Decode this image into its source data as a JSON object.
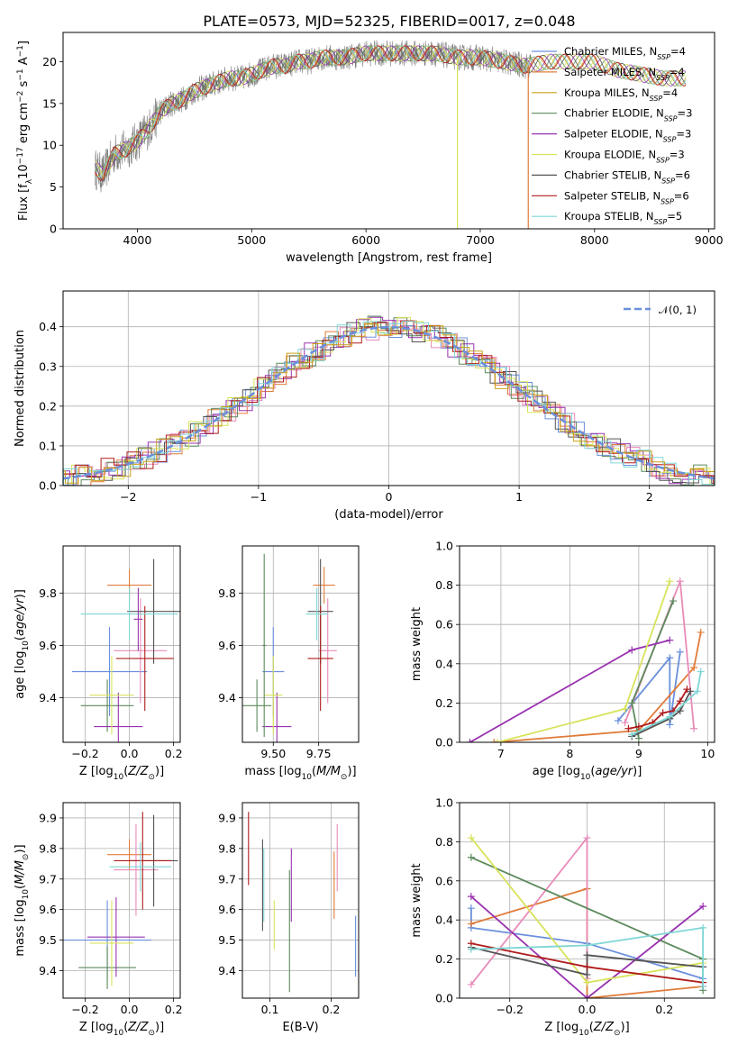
{
  "figure_title": "PLATE=0573, MJD=52325, FIBERID=0017, z=0.048",
  "colors": {
    "chabrier_miles": "#6a8fdc",
    "salpeter_miles": "#e07b39",
    "kroupa_miles": "#c9a21a",
    "chabrier_elodie": "#5c8a5c",
    "salpeter_elodie": "#9932b0",
    "kroupa_elodie": "#d8e35a",
    "chabrier_stelib": "#555555",
    "salpeter_stelib": "#b01c1c",
    "kroupa_stelib": "#7fd6d6",
    "pink": "#e88bb8",
    "data_gray": "#7f7f7f"
  },
  "chart_data": [
    {
      "id": "spectrum",
      "type": "line",
      "title": "PLATE=0573, MJD=52325, FIBERID=0017, z=0.048",
      "xlabel": "wavelength [Angstrom, rest frame]",
      "ylabel": "Flux [fλ10⁻¹⁷ erg cm⁻² s⁻¹ A⁻¹]",
      "xlim": [
        3350,
        9050
      ],
      "ylim": [
        0,
        23.5
      ],
      "xticks": [
        4000,
        5000,
        6000,
        7000,
        8000,
        9000
      ],
      "yticks": [
        0,
        5,
        10,
        15,
        20
      ],
      "grid": false,
      "legend_position": "right",
      "legend": [
        {
          "label": "Chabrier MILES, N",
          "sub": "SSP",
          "tail": "=4",
          "color": "chabrier_miles"
        },
        {
          "label": "Salpeter MILES, N",
          "sub": "SSP",
          "tail": "=4",
          "color": "salpeter_miles"
        },
        {
          "label": "Kroupa MILES, N",
          "sub": "SSP",
          "tail": "=4",
          "color": "kroupa_miles"
        },
        {
          "label": "Chabrier ELODIE, N",
          "sub": "SSP",
          "tail": "=3",
          "color": "chabrier_elodie"
        },
        {
          "label": "Salpeter ELODIE, N",
          "sub": "SSP",
          "tail": "=3",
          "color": "salpeter_elodie"
        },
        {
          "label": "Kroupa ELODIE, N",
          "sub": "SSP",
          "tail": "=3",
          "color": "kroupa_elodie"
        },
        {
          "label": "Chabrier STELIB, N",
          "sub": "SSP",
          "tail": "=6",
          "color": "chabrier_stelib"
        },
        {
          "label": "Salpeter STELIB, N",
          "sub": "SSP",
          "tail": "=6",
          "color": "salpeter_stelib"
        },
        {
          "label": "Kroupa STELIB, N",
          "sub": "SSP",
          "tail": "=5",
          "color": "kroupa_stelib"
        }
      ],
      "continuum_x": [
        3600,
        3700,
        3800,
        3900,
        4000,
        4100,
        4200,
        4300,
        4400,
        4500,
        4600,
        4700,
        4800,
        4900,
        5000,
        5100,
        5200,
        5300,
        5400,
        5500,
        5600,
        5800,
        6000,
        6200,
        6400,
        6600,
        6800,
        7000,
        7200,
        7400,
        7600,
        7800,
        8000,
        8200,
        8400,
        8600,
        8800
      ],
      "continuum_y": [
        7.5,
        6.5,
        9,
        9.5,
        10.5,
        12,
        14,
        15,
        15.5,
        16.5,
        17,
        17.5,
        18,
        18,
        18.5,
        19,
        19.5,
        19.5,
        20,
        20,
        20.5,
        20.5,
        21,
        21,
        21,
        21,
        20.5,
        20.5,
        20,
        19.5,
        20,
        20,
        20,
        19,
        18.5,
        18,
        18
      ],
      "dips": [
        {
          "x": 6800,
          "color": "kroupa_elodie"
        },
        {
          "x": 7420,
          "color": "salpeter_miles"
        }
      ]
    },
    {
      "id": "residuals",
      "type": "histogram",
      "xlabel": "(data-model)/error",
      "ylabel": "Normed distribution",
      "xlim": [
        -2.5,
        2.5
      ],
      "ylim": [
        0,
        0.49
      ],
      "xticks": [
        -2,
        -1,
        0,
        1,
        2
      ],
      "xtick_labels": [
        "−2",
        "−1",
        "0",
        "1",
        "2"
      ],
      "yticks": [
        0.0,
        0.1,
        0.2,
        0.3,
        0.4
      ],
      "ytick_labels": [
        "0.0",
        "0.1",
        "0.2",
        "0.3",
        "0.4"
      ],
      "grid": true,
      "legend_position": "top-right",
      "legend_label": "𝒩(0, 1)",
      "bin_width": 0.1
    },
    {
      "id": "age_vs_Z",
      "type": "errorbar",
      "xlabel": "Z [log₁₀(Z/Z⊙)]",
      "ylabel": "age  [log₁₀(age/yr)]",
      "xlim": [
        -0.3,
        0.23
      ],
      "ylim": [
        9.23,
        9.98
      ],
      "xticks": [
        -0.2,
        0.0,
        0.2
      ],
      "xtick_labels": [
        "−0.2",
        "0.0",
        "0.2"
      ],
      "yticks": [
        9.4,
        9.6,
        9.8
      ],
      "ytick_labels": [
        "9.4",
        "9.6",
        "9.8"
      ],
      "grid": true,
      "points": [
        {
          "x": -0.09,
          "y": 9.5,
          "xerr": 0.17,
          "yerr": 0.17,
          "color": "chabrier_miles"
        },
        {
          "x": 0.0,
          "y": 9.83,
          "xerr": 0.1,
          "yerr": 0.06,
          "color": "salpeter_miles"
        },
        {
          "x": 0.05,
          "y": 9.58,
          "xerr": 0.12,
          "yerr": 0.2,
          "color": "pink"
        },
        {
          "x": -0.1,
          "y": 9.37,
          "xerr": 0.12,
          "yerr": 0.1,
          "color": "chabrier_elodie"
        },
        {
          "x": -0.05,
          "y": 9.29,
          "xerr": 0.11,
          "yerr": 0.13,
          "color": "salpeter_elodie"
        },
        {
          "x": -0.08,
          "y": 9.41,
          "xerr": 0.1,
          "yerr": 0.15,
          "color": "kroupa_elodie"
        },
        {
          "x": 0.11,
          "y": 9.73,
          "xerr": 0.12,
          "yerr": 0.2,
          "color": "chabrier_stelib"
        },
        {
          "x": 0.07,
          "y": 9.55,
          "xerr": 0.13,
          "yerr": 0.2,
          "color": "salpeter_stelib"
        },
        {
          "x": 0.0,
          "y": 9.72,
          "xerr": 0.22,
          "yerr": 0.1,
          "color": "kroupa_stelib"
        },
        {
          "x": 0.04,
          "y": 9.7,
          "xerr": 0.02,
          "yerr": 0.12,
          "color": "salpeter_elodie"
        }
      ]
    },
    {
      "id": "age_vs_mass",
      "type": "errorbar",
      "xlabel": "mass [log₁₀(M/M⊙)]",
      "ylabel": "",
      "xlim": [
        9.33,
        9.97
      ],
      "ylim": [
        9.23,
        9.98
      ],
      "xticks": [
        9.5,
        9.75
      ],
      "xtick_labels": [
        "9.50",
        "9.75"
      ],
      "yticks": [
        9.4,
        9.6,
        9.8
      ],
      "ytick_labels": [
        "9.4",
        "9.6",
        "9.8"
      ],
      "grid": true,
      "points": [
        {
          "x": 9.5,
          "y": 9.5,
          "xerr": 0.06,
          "yerr": 0.17,
          "color": "chabrier_miles"
        },
        {
          "x": 9.78,
          "y": 9.83,
          "xerr": 0.06,
          "yerr": 0.07,
          "color": "salpeter_miles"
        },
        {
          "x": 9.8,
          "y": 9.58,
          "xerr": 0.05,
          "yerr": 0.2,
          "color": "pink"
        },
        {
          "x": 9.41,
          "y": 9.37,
          "xerr": 0.08,
          "yerr": 0.1,
          "color": "chabrier_elodie"
        },
        {
          "x": 9.52,
          "y": 9.29,
          "xerr": 0.08,
          "yerr": 0.13,
          "color": "salpeter_elodie"
        },
        {
          "x": 9.5,
          "y": 9.41,
          "xerr": 0.05,
          "yerr": 0.15,
          "color": "kroupa_elodie"
        },
        {
          "x": 9.76,
          "y": 9.73,
          "xerr": 0.07,
          "yerr": 0.2,
          "color": "chabrier_stelib"
        },
        {
          "x": 9.76,
          "y": 9.55,
          "xerr": 0.07,
          "yerr": 0.2,
          "color": "salpeter_stelib"
        },
        {
          "x": 9.74,
          "y": 9.72,
          "xerr": 0.06,
          "yerr": 0.1,
          "color": "kroupa_stelib"
        },
        {
          "x": 9.45,
          "y": 9.6,
          "xerr": 0.01,
          "yerr": 0.35,
          "color": "chabrier_elodie"
        }
      ]
    },
    {
      "id": "weight_vs_age",
      "type": "line",
      "xlabel": "age  [log₁₀(age/yr)]",
      "ylabel": "mass weight",
      "xlim": [
        6.4,
        10.1
      ],
      "ylim": [
        0,
        1.0
      ],
      "xticks": [
        7,
        8,
        9,
        10
      ],
      "yticks": [
        0.0,
        0.2,
        0.4,
        0.6,
        0.8,
        1.0
      ],
      "ytick_labels": [
        "0.0",
        "0.2",
        "0.4",
        "0.6",
        "0.8",
        "1.0"
      ],
      "grid": true,
      "series": [
        {
          "color": "chabrier_miles",
          "x": [
            8.7,
            9.45,
            9.45,
            9.6
          ],
          "y": [
            0.11,
            0.43,
            0.09,
            0.46
          ]
        },
        {
          "color": "salpeter_miles",
          "x": [
            6.9,
            9.0,
            9.8,
            9.9
          ],
          "y": [
            0.0,
            0.06,
            0.38,
            0.56
          ]
        },
        {
          "color": "pink",
          "x": [
            8.8,
            9.6,
            9.8
          ],
          "y": [
            0.1,
            0.82,
            0.07
          ]
        },
        {
          "color": "chabrier_elodie",
          "x": [
            9.0,
            8.9,
            9.5
          ],
          "y": [
            0.02,
            0.2,
            0.72
          ]
        },
        {
          "color": "salpeter_elodie",
          "x": [
            6.55,
            8.9,
            9.45
          ],
          "y": [
            0.0,
            0.47,
            0.52
          ]
        },
        {
          "color": "kroupa_elodie",
          "x": [
            6.95,
            8.8,
            9.45
          ],
          "y": [
            0.0,
            0.17,
            0.82
          ]
        },
        {
          "color": "chabrier_stelib",
          "x": [
            8.9,
            9.45,
            9.6,
            9.75
          ],
          "y": [
            0.03,
            0.12,
            0.16,
            0.26
          ]
        },
        {
          "color": "salpeter_stelib",
          "x": [
            8.85,
            9.0,
            9.2,
            9.35,
            9.5,
            9.6,
            9.7
          ],
          "y": [
            0.07,
            0.08,
            0.1,
            0.15,
            0.16,
            0.21,
            0.27
          ]
        },
        {
          "color": "kroupa_stelib",
          "x": [
            8.9,
            9.45,
            9.85,
            9.9
          ],
          "y": [
            0.04,
            0.13,
            0.26,
            0.36
          ]
        }
      ]
    },
    {
      "id": "mass_vs_Z",
      "type": "errorbar",
      "xlabel": "Z [log₁₀(Z/Z⊙)]",
      "ylabel": "mass [log₁₀(M/M⊙)]",
      "xlim": [
        -0.3,
        0.23
      ],
      "ylim": [
        9.31,
        9.95
      ],
      "xticks": [
        -0.2,
        0.0,
        0.2
      ],
      "xtick_labels": [
        "−0.2",
        "0.0",
        "0.2"
      ],
      "yticks": [
        9.4,
        9.5,
        9.6,
        9.7,
        9.8,
        9.9
      ],
      "ytick_labels": [
        "9.4",
        "9.5",
        "9.6",
        "9.7",
        "9.8",
        "9.9"
      ],
      "grid": true,
      "points": [
        {
          "x": -0.1,
          "y": 9.5,
          "xerr": 0.2,
          "yerr": 0.13,
          "color": "chabrier_miles"
        },
        {
          "x": 0.0,
          "y": 9.78,
          "xerr": 0.1,
          "yerr": 0.05,
          "color": "salpeter_miles"
        },
        {
          "x": 0.03,
          "y": 9.73,
          "xerr": 0.1,
          "yerr": 0.15,
          "color": "pink"
        },
        {
          "x": -0.1,
          "y": 9.41,
          "xerr": 0.13,
          "yerr": 0.07,
          "color": "chabrier_elodie"
        },
        {
          "x": -0.06,
          "y": 9.51,
          "xerr": 0.13,
          "yerr": 0.13,
          "color": "salpeter_elodie"
        },
        {
          "x": -0.08,
          "y": 9.49,
          "xerr": 0.1,
          "yerr": 0.14,
          "color": "kroupa_elodie"
        },
        {
          "x": 0.11,
          "y": 9.76,
          "xerr": 0.11,
          "yerr": 0.15,
          "color": "chabrier_stelib"
        },
        {
          "x": 0.06,
          "y": 9.76,
          "xerr": 0.13,
          "yerr": 0.16,
          "color": "salpeter_stelib"
        },
        {
          "x": 0.05,
          "y": 9.74,
          "xerr": 0.14,
          "yerr": 0.08,
          "color": "kroupa_stelib"
        }
      ]
    },
    {
      "id": "mass_vs_ebv",
      "type": "errorbar",
      "xlabel": "E(B-V)",
      "ylabel": "",
      "xlim": [
        0.055,
        0.245
      ],
      "ylim": [
        9.31,
        9.95
      ],
      "xticks": [
        0.1,
        0.2
      ],
      "xtick_labels": [
        "0.1",
        "0.2"
      ],
      "yticks": [
        9.4,
        9.5,
        9.6,
        9.7,
        9.8,
        9.9
      ],
      "ytick_labels": [
        "9.4",
        "9.5",
        "9.6",
        "9.7",
        "9.8",
        "9.9"
      ],
      "grid": true,
      "points": [
        {
          "x": 0.065,
          "y": 9.8,
          "xerr": 0,
          "yerr": 0.12,
          "color": "salpeter_stelib"
        },
        {
          "x": 0.088,
          "y": 9.68,
          "xerr": 0,
          "yerr": 0.15,
          "color": "chabrier_stelib"
        },
        {
          "x": 0.09,
          "y": 9.68,
          "xerr": 0,
          "yerr": 0.12,
          "color": "kroupa_stelib"
        },
        {
          "x": 0.107,
          "y": 9.55,
          "xerr": 0,
          "yerr": 0.08,
          "color": "kroupa_elodie"
        },
        {
          "x": 0.132,
          "y": 9.53,
          "xerr": 0,
          "yerr": 0.2,
          "color": "chabrier_elodie"
        },
        {
          "x": 0.135,
          "y": 9.68,
          "xerr": 0,
          "yerr": 0.12,
          "color": "salpeter_elodie"
        },
        {
          "x": 0.205,
          "y": 9.68,
          "xerr": 0,
          "yerr": 0.11,
          "color": "salpeter_miles"
        },
        {
          "x": 0.21,
          "y": 9.77,
          "xerr": 0,
          "yerr": 0.11,
          "color": "pink"
        },
        {
          "x": 0.24,
          "y": 9.48,
          "xerr": 0,
          "yerr": 0.1,
          "color": "chabrier_miles"
        }
      ]
    },
    {
      "id": "weight_vs_Z",
      "type": "line",
      "xlabel": "Z [log₁₀(Z/Z⊙)]",
      "ylabel": "mass weight",
      "xlim": [
        -0.33,
        0.33
      ],
      "ylim": [
        0,
        1.0
      ],
      "xticks": [
        -0.2,
        0.0,
        0.2
      ],
      "xtick_labels": [
        "−0.2",
        "0.0",
        "0.2"
      ],
      "yticks": [
        0.0,
        0.2,
        0.4,
        0.6,
        0.8,
        1.0
      ],
      "ytick_labels": [
        "0.0",
        "0.2",
        "0.4",
        "0.6",
        "0.8",
        "1.0"
      ],
      "grid": true,
      "series": [
        {
          "color": "chabrier_miles",
          "x": [
            -0.3,
            -0.3,
            0.0,
            0.3
          ],
          "y": [
            0.46,
            0.36,
            0.28,
            0.1
          ]
        },
        {
          "color": "salpeter_miles",
          "x": [
            -0.3,
            0.0,
            0.0,
            0.3
          ],
          "y": [
            0.38,
            0.56,
            0.0,
            0.06
          ]
        },
        {
          "color": "pink",
          "x": [
            -0.3,
            0.0,
            0.0
          ],
          "y": [
            0.07,
            0.82,
            0.1
          ]
        },
        {
          "color": "chabrier_elodie",
          "x": [
            -0.3,
            0.3,
            0.3
          ],
          "y": [
            0.72,
            0.2,
            0.04
          ]
        },
        {
          "color": "salpeter_elodie",
          "x": [
            -0.3,
            0.0,
            0.3
          ],
          "y": [
            0.52,
            0.0,
            0.47
          ]
        },
        {
          "color": "kroupa_elodie",
          "x": [
            -0.3,
            0.0,
            0.3
          ],
          "y": [
            0.82,
            0.08,
            0.18
          ]
        },
        {
          "color": "chabrier_stelib",
          "x": [
            -0.3,
            0.0,
            0.0,
            0.3
          ],
          "y": [
            0.26,
            0.12,
            0.22,
            0.16
          ]
        },
        {
          "color": "salpeter_stelib",
          "x": [
            -0.3,
            0.0,
            0.3
          ],
          "y": [
            0.28,
            0.16,
            0.08
          ]
        },
        {
          "color": "kroupa_stelib",
          "x": [
            -0.3,
            0.0,
            0.3,
            0.3
          ],
          "y": [
            0.25,
            0.27,
            0.36,
            0.06
          ]
        }
      ]
    }
  ]
}
